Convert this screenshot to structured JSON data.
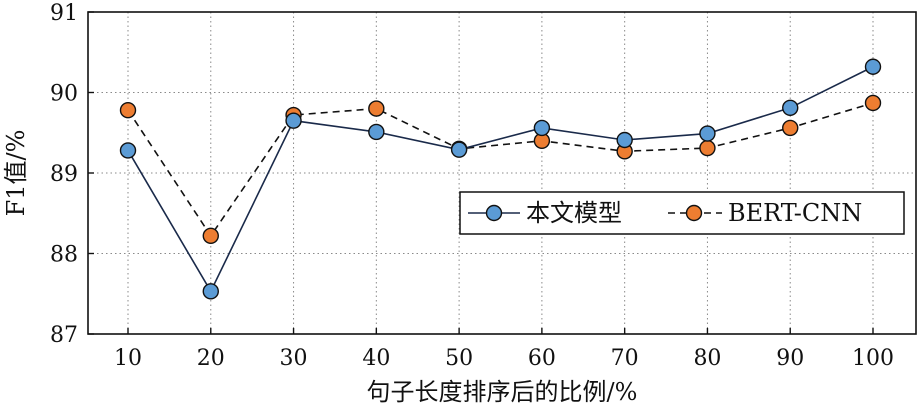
{
  "chart_data": {
    "type": "line",
    "title": "",
    "xlabel": "句子长度排序后的比例/%",
    "ylabel": "F1值/%",
    "x": [
      10,
      20,
      30,
      40,
      50,
      60,
      70,
      80,
      90,
      100
    ],
    "x_tick_labels": [
      "10",
      "20",
      "30",
      "40",
      "50",
      "60",
      "70",
      "80",
      "90",
      "100"
    ],
    "y_ticks": [
      87,
      88,
      89,
      90,
      91
    ],
    "y_tick_labels": [
      "87",
      "88",
      "89",
      "90",
      "91"
    ],
    "ylim": [
      87,
      91
    ],
    "grid": true,
    "legend_position": "center-right",
    "series": [
      {
        "name": "本文模型",
        "values": [
          89.28,
          87.53,
          89.65,
          89.51,
          89.29,
          89.56,
          89.41,
          89.49,
          89.81,
          90.32
        ],
        "line_style": "solid",
        "marker_color": "#5b9bd5"
      },
      {
        "name": "BERT-CNN",
        "values": [
          89.78,
          88.22,
          89.72,
          89.8,
          89.3,
          89.4,
          89.27,
          89.31,
          89.56,
          89.87
        ],
        "line_style": "dashed",
        "marker_color": "#ed7d31"
      }
    ]
  }
}
